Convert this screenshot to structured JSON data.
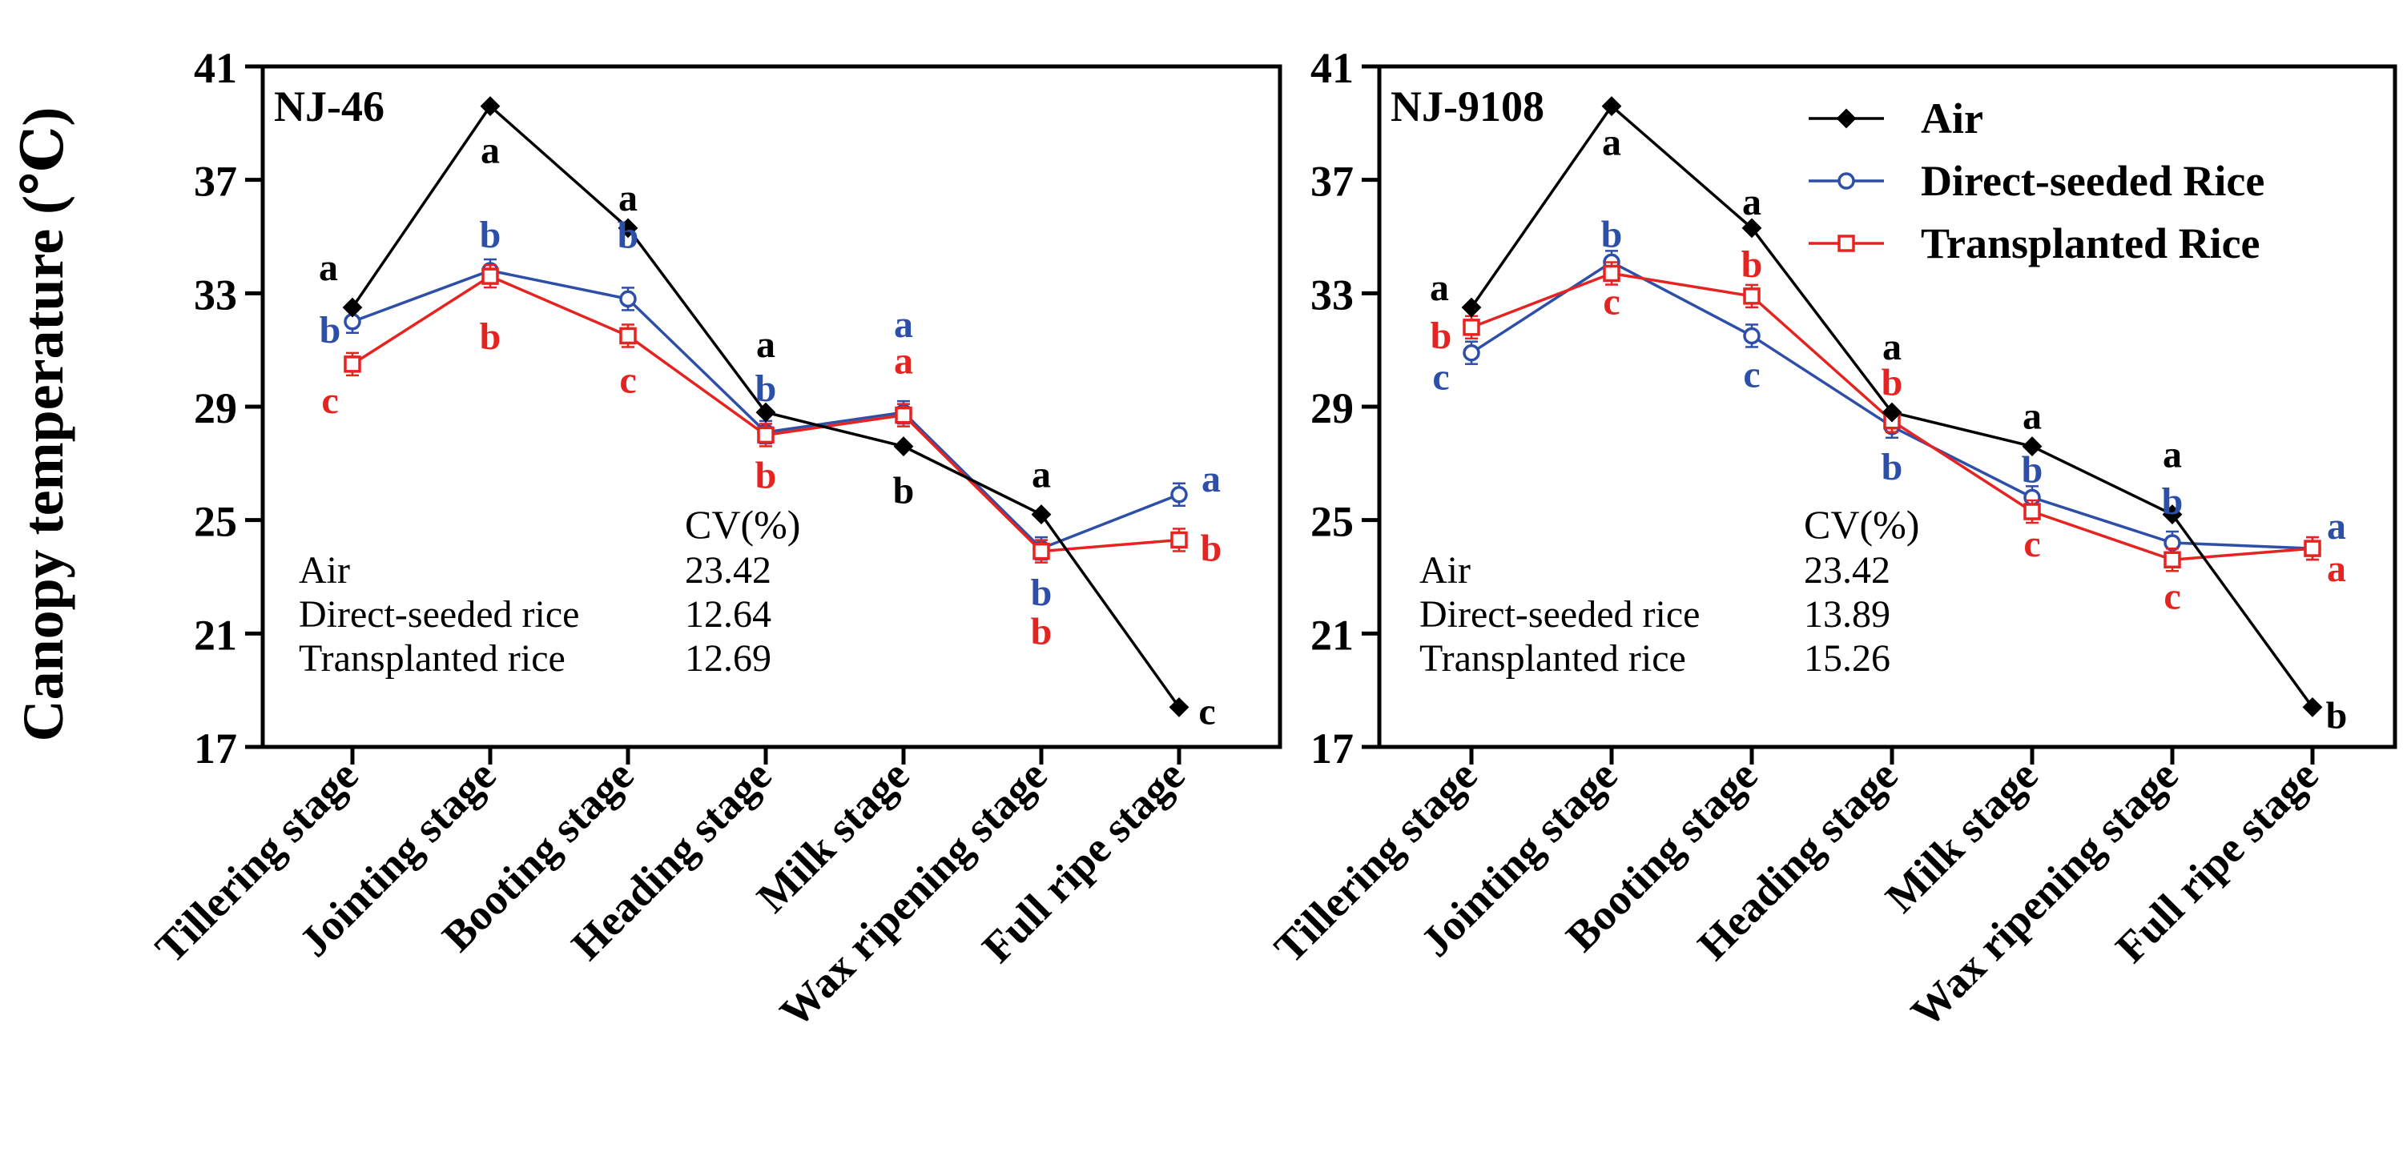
{
  "colors": {
    "air": "#000000",
    "direct": "#2E4FA8",
    "transplanted": "#E52421",
    "axis": "#000000"
  },
  "y_axis_title": "Canopy temperature (℃)",
  "legend": [
    "Air",
    "Direct-seeded Rice",
    "Transplanted Rice"
  ],
  "chart_data": [
    {
      "type": "line",
      "title": "NJ-46",
      "ylabel": "Canopy temperature (℃)",
      "ylim": [
        17,
        41
      ],
      "yticks": [
        17,
        21,
        25,
        29,
        33,
        37,
        41
      ],
      "categories": [
        "Tillering stage",
        "Jointing stage",
        "Booting stage",
        "Heading stage",
        "Milk stage",
        "Wax ripening stage",
        "Full ripe stage"
      ],
      "series": [
        {
          "name": "Air",
          "key": "air",
          "marker": "diamond",
          "values": [
            32.5,
            39.6,
            35.3,
            28.8,
            27.6,
            25.2,
            18.4
          ],
          "letters": [
            "a",
            "a",
            "a",
            "a",
            "b",
            "a",
            "c"
          ]
        },
        {
          "name": "Direct-seeded Rice",
          "key": "direct",
          "marker": "circle",
          "values": [
            32.0,
            33.8,
            32.8,
            28.1,
            28.8,
            24.0,
            25.9
          ],
          "letters": [
            "b",
            "b",
            "b",
            "b",
            "a",
            "b",
            "a"
          ]
        },
        {
          "name": "Transplanted Rice",
          "key": "transplanted",
          "marker": "square",
          "values": [
            30.5,
            33.6,
            31.5,
            28.0,
            28.7,
            23.9,
            24.3
          ],
          "letters": [
            "c",
            "b",
            "c",
            "b",
            "a",
            "b",
            "b"
          ]
        }
      ],
      "cv_table": {
        "header": "CV(%)",
        "rows": [
          {
            "label": "Air",
            "value": "23.42"
          },
          {
            "label": "Direct-seeded rice",
            "value": "12.64"
          },
          {
            "label": "Transplanted rice",
            "value": "12.69"
          }
        ]
      }
    },
    {
      "type": "line",
      "title": "NJ-9108",
      "ylabel": "Canopy temperature (℃)",
      "ylim": [
        17,
        41
      ],
      "yticks": [
        17,
        21,
        25,
        29,
        33,
        37,
        41
      ],
      "categories": [
        "Tillering stage",
        "Jointing stage",
        "Booting stage",
        "Heading stage",
        "Milk stage",
        "Wax ripening stage",
        "Full ripe stage"
      ],
      "series": [
        {
          "name": "Air",
          "key": "air",
          "marker": "diamond",
          "values": [
            32.5,
            39.6,
            35.3,
            28.8,
            27.6,
            25.2,
            18.4
          ],
          "letters": [
            "a",
            "a",
            "a",
            "a",
            "a",
            "a",
            "b"
          ]
        },
        {
          "name": "Direct-seeded Rice",
          "key": "direct",
          "marker": "circle",
          "values": [
            30.9,
            34.1,
            31.5,
            28.3,
            25.8,
            24.2,
            24.0
          ],
          "letters": [
            "c",
            "b",
            "c",
            "b",
            "b",
            "b",
            "a"
          ]
        },
        {
          "name": "Transplanted Rice",
          "key": "transplanted",
          "marker": "square",
          "values": [
            31.8,
            33.7,
            32.9,
            28.5,
            25.3,
            23.6,
            24.0
          ],
          "letters": [
            "b",
            "c",
            "b",
            "b",
            "c",
            "c",
            "a"
          ]
        }
      ],
      "cv_table": {
        "header": "CV(%)",
        "rows": [
          {
            "label": "Air",
            "value": "23.42"
          },
          {
            "label": "Direct-seeded rice",
            "value": "13.89"
          },
          {
            "label": "Transplanted rice",
            "value": "15.26"
          }
        ]
      }
    }
  ]
}
